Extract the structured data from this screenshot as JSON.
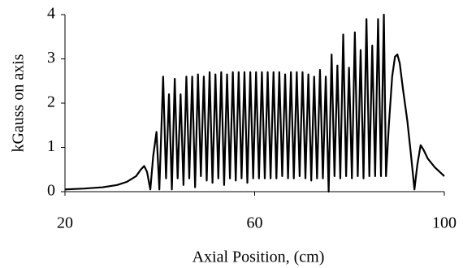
{
  "chart_data": {
    "type": "line",
    "xlabel": "Axial Position, (cm)",
    "ylabel": "kGauss on axis",
    "color": "#000000",
    "xlim": [
      20,
      100
    ],
    "xticks": [
      20,
      60,
      100
    ],
    "ylim": [
      0,
      4
    ],
    "yticks": [
      0,
      1,
      2,
      3,
      4
    ],
    "x": [
      20,
      24,
      28,
      31,
      33,
      35,
      36,
      36.7,
      37.3,
      38,
      38.6,
      39.3,
      39.9,
      40.7,
      41.31,
      41.93,
      42.54,
      43.15,
      43.76,
      44.38,
      44.99,
      45.6,
      46.21,
      46.83,
      47.44,
      48.05,
      48.66,
      49.28,
      49.89,
      50.5,
      51.11,
      51.73,
      52.34,
      52.95,
      53.56,
      54.18,
      54.79,
      55.4,
      56.01,
      56.63,
      57.24,
      57.85,
      58.46,
      59.08,
      59.69,
      60.3,
      60.91,
      61.53,
      62.14,
      62.75,
      63.36,
      63.98,
      64.59,
      65.2,
      65.81,
      66.43,
      67.04,
      67.65,
      68.26,
      68.88,
      69.49,
      70.1,
      70.71,
      71.33,
      71.94,
      72.55,
      73.16,
      73.78,
      74.39,
      75.0,
      75.61,
      76.23,
      76.84,
      77.45,
      78.06,
      78.68,
      79.29,
      79.9,
      80.51,
      81.13,
      81.74,
      82.35,
      82.96,
      83.58,
      84.19,
      84.8,
      85.41,
      86.03,
      86.64,
      87.25,
      87.7,
      88.3,
      89,
      89.6,
      90.1,
      90.6,
      91.3,
      92.2,
      93,
      93.7,
      94.3,
      95,
      95.6,
      96.5,
      98,
      100
    ],
    "values": [
      0.05,
      0.07,
      0.1,
      0.15,
      0.22,
      0.35,
      0.5,
      0.58,
      0.45,
      0.05,
      0.8,
      1.35,
      0.05,
      2.6,
      0.3,
      2.2,
      0.05,
      2.55,
      0.3,
      2.2,
      0.15,
      2.6,
      0.3,
      2.6,
      0.1,
      2.65,
      0.35,
      2.6,
      0.25,
      2.7,
      0.2,
      2.65,
      0.3,
      2.7,
      0.15,
      2.65,
      0.3,
      2.7,
      0.25,
      2.7,
      0.3,
      2.7,
      0.2,
      2.7,
      0.3,
      2.7,
      0.3,
      2.7,
      0.3,
      2.7,
      0.3,
      2.7,
      0.3,
      2.7,
      0.35,
      2.65,
      0.3,
      2.7,
      0.3,
      2.7,
      0.35,
      2.7,
      0.3,
      2.65,
      0.25,
      2.6,
      0.3,
      2.75,
      0.3,
      2.6,
      0.0,
      3.1,
      0.35,
      2.85,
      0.3,
      3.55,
      0.35,
      2.8,
      0.3,
      3.6,
      0.35,
      3.2,
      0.3,
      3.9,
      0.35,
      3.3,
      0.35,
      3.9,
      0.35,
      4.0,
      0.35,
      1.5,
      2.6,
      3.05,
      3.1,
      2.9,
      2.3,
      1.6,
      0.8,
      0.05,
      0.6,
      1.05,
      0.95,
      0.75,
      0.55,
      0.35
    ]
  }
}
